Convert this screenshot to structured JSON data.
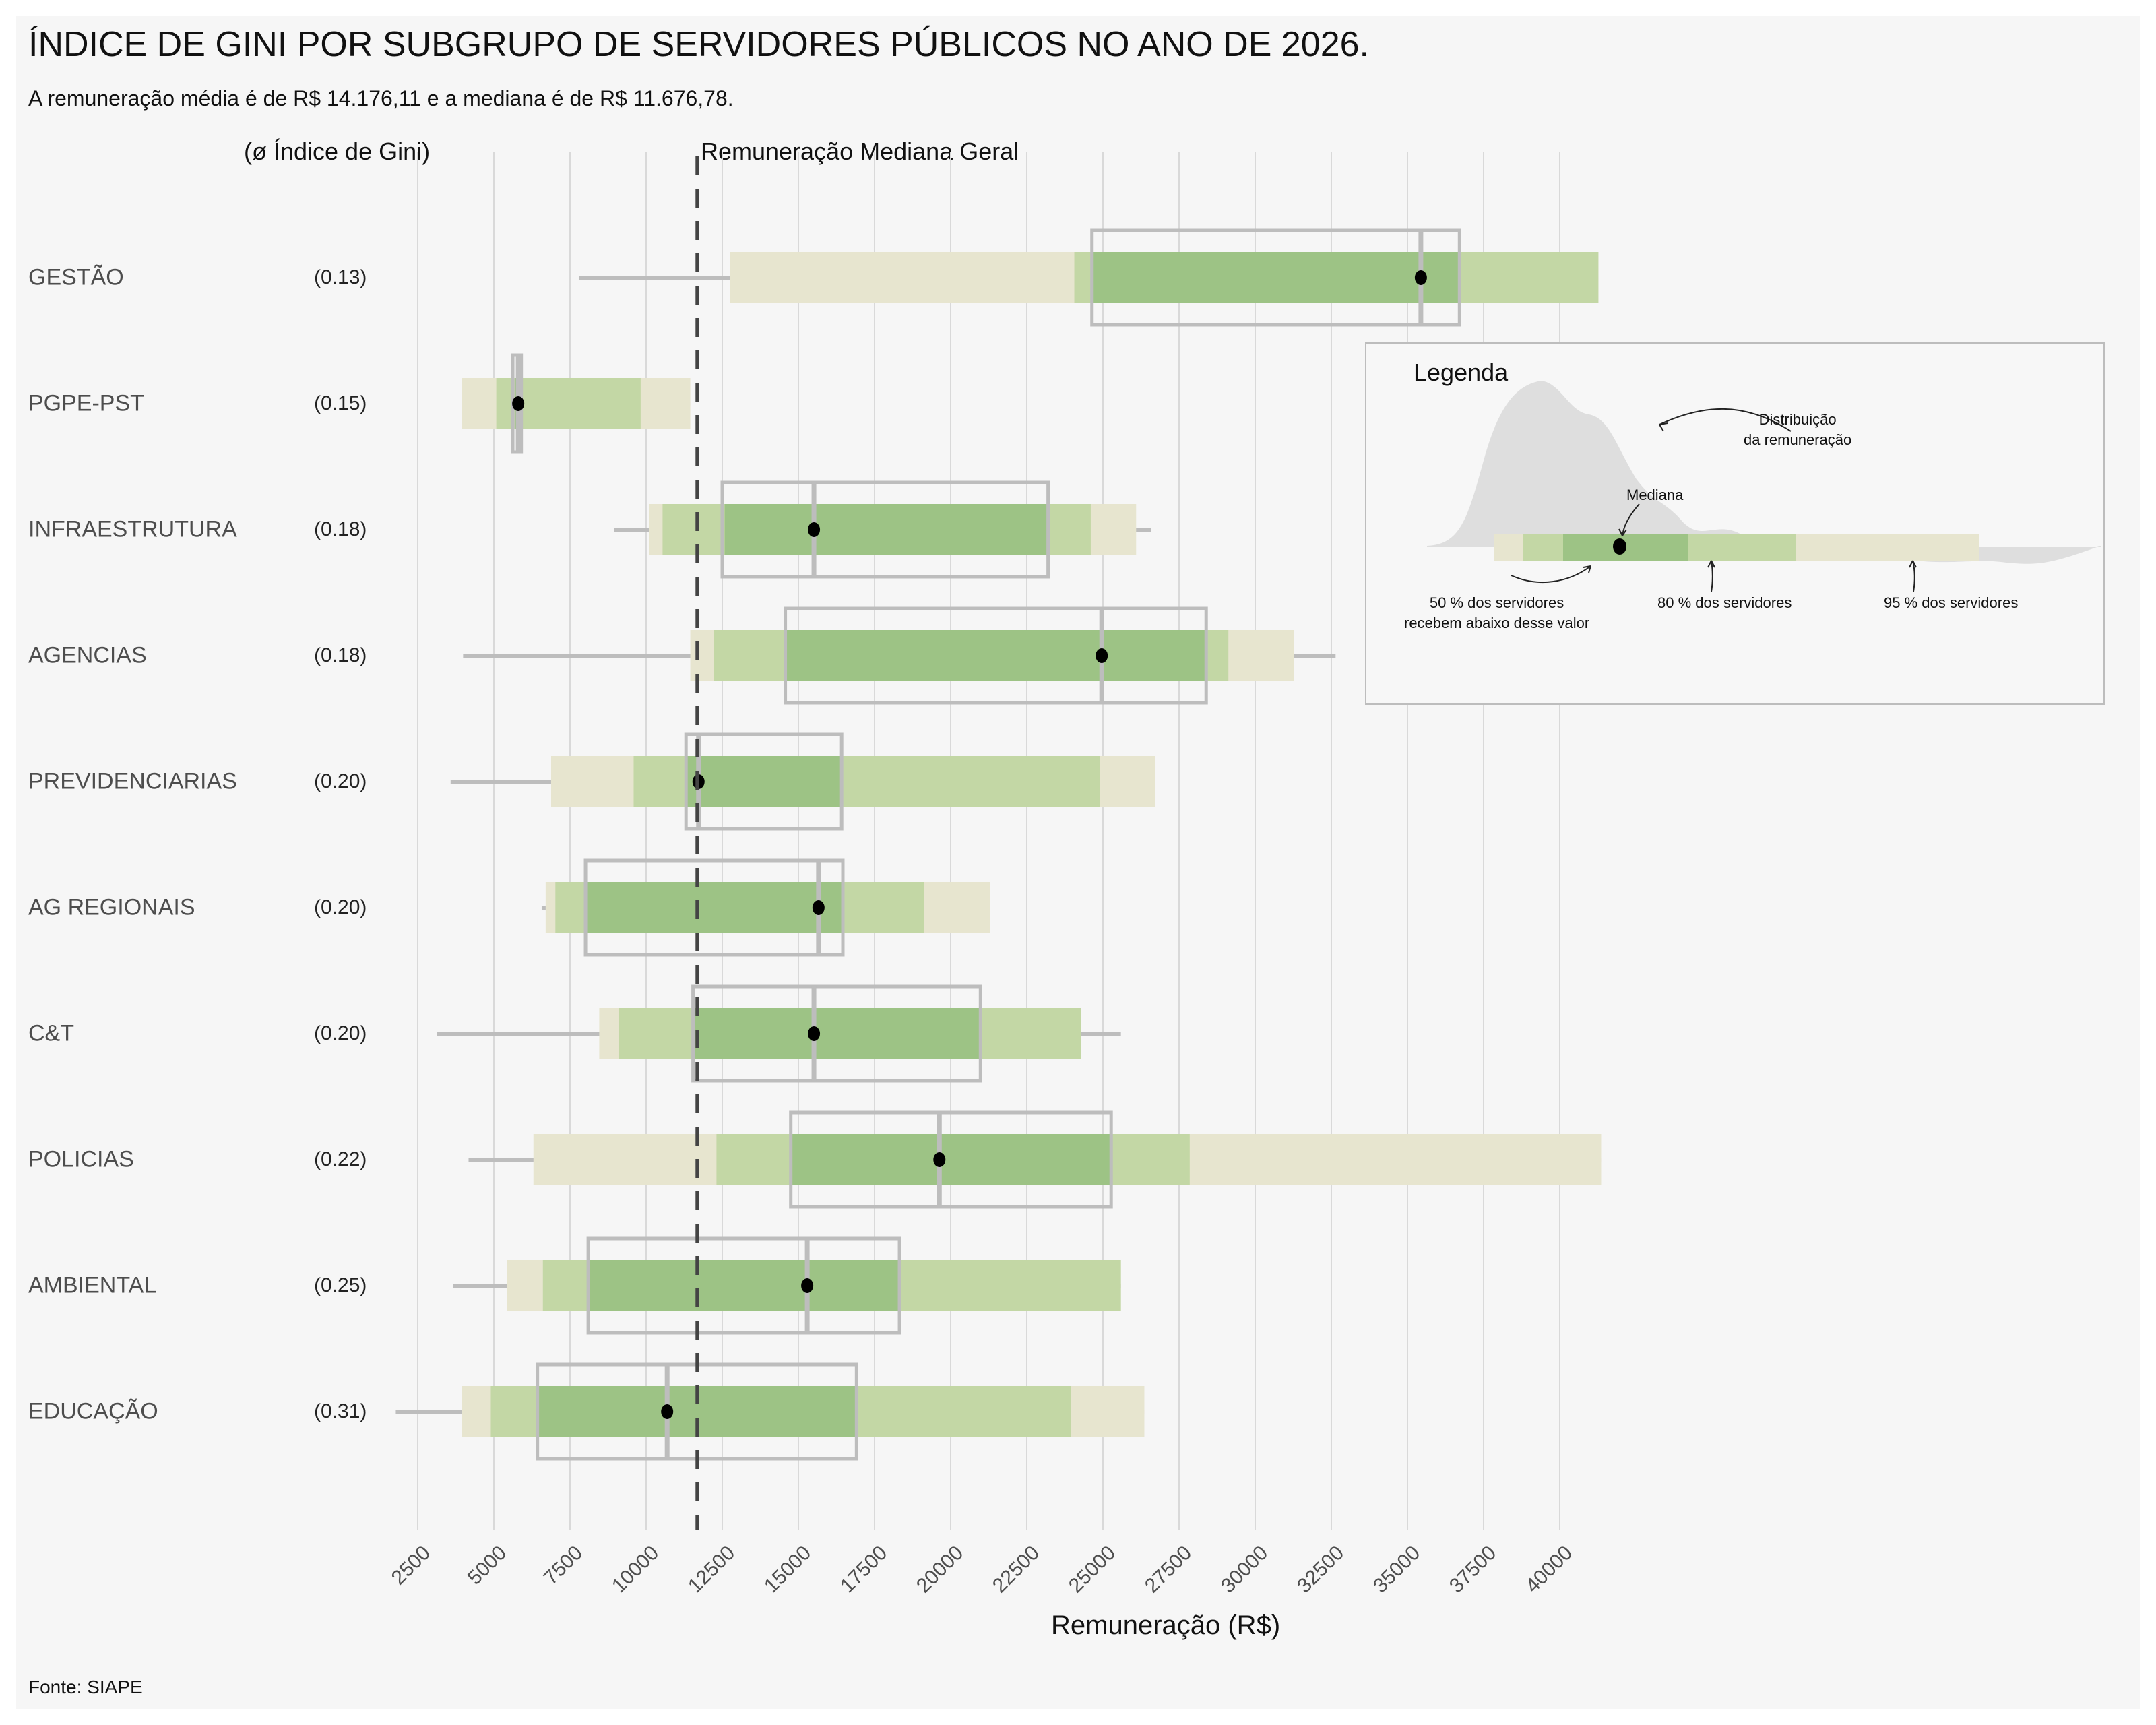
{
  "title": "ÍNDICE DE GINI POR SUBGRUPO DE SERVIDORES PÚBLICOS NO ANO DE 2026.",
  "subtitle": "A remuneração média é de R$ 14.176,11 e a mediana é de R$ 11.676,78.",
  "gini_header": "(ø Índice de Gini)",
  "reference_line_label": "Remuneração Mediana Geral",
  "source": "Fonte: SIAPE",
  "colors": {
    "band95": "#e7e5cf",
    "band80": "#c3d7a5",
    "band50": "#9dc385",
    "box": "#bdbdbd",
    "whisker": "#bdbdbd",
    "median_dot": "#000000",
    "reference_line": "#444444",
    "grid": "#d9d9d9",
    "density": "#dedede"
  },
  "legend": {
    "title": "Legenda",
    "distribution": "Distribuição\nda remuneração",
    "median": "Mediana",
    "p50": "50 % dos servidores\nrecebem abaixo desse valor",
    "p80": "80 % dos servidores",
    "p95": "95 % dos servidores"
  },
  "chart_data": {
    "type": "bar",
    "subtype": "interval-bar with boxplot overlay",
    "title": "ÍNDICE DE GINI POR SUBGRUPO DE SERVIDORES PÚBLICOS NO ANO DE 2026.",
    "xlabel": "Remuneração (R$)",
    "ylabel": "",
    "xlim": [
      1500,
      42000
    ],
    "xticks": [
      2500,
      5000,
      7500,
      10000,
      12500,
      15000,
      17500,
      20000,
      22500,
      25000,
      27500,
      30000,
      32500,
      35000,
      37500,
      40000
    ],
    "grid": "vertical",
    "reference_line": {
      "label": "Remuneração Mediana Geral",
      "value": 11676.78
    },
    "overall_mean": 14176.11,
    "legend_position": "top-right",
    "categories": [
      "GESTÃO",
      "PGPE-PST",
      "INFRAESTRUTURA",
      "AGENCIAS",
      "PREVIDENCIARIAS",
      "AG REGIONAIS",
      "C&T",
      "POLICIAS",
      "AMBIENTAL",
      "EDUCAÇÃO"
    ],
    "gini": [
      "(0.13)",
      "(0.15)",
      "(0.18)",
      "(0.18)",
      "(0.20)",
      "(0.20)",
      "(0.20)",
      "(0.22)",
      "(0.25)",
      "(0.31)"
    ],
    "series": [
      {
        "name": "GESTÃO",
        "median": 35440,
        "p50": [
          24640,
          36710
        ],
        "p80": [
          24060,
          41270
        ],
        "p95": [
          12760,
          41270
        ],
        "whisker": [
          7800,
          41270
        ],
        "box": [
          24640,
          36710,
          35440
        ]
      },
      {
        "name": "PGPE-PST",
        "median": 5800,
        "p50": [
          5700,
          5850
        ],
        "p80": [
          5080,
          9820
        ],
        "p95": [
          3950,
          11450
        ],
        "whisker": [
          3950,
          11450
        ],
        "box": [
          5620,
          5900,
          5800
        ]
      },
      {
        "name": "INFRAESTRUTURA",
        "median": 15510,
        "p50": [
          12580,
          23200
        ],
        "p80": [
          10540,
          24600
        ],
        "p95": [
          10090,
          26090
        ],
        "whisker": [
          8960,
          26590
        ],
        "box": [
          12500,
          23200,
          15510
        ]
      },
      {
        "name": "AGENCIAS",
        "median": 24960,
        "p50": [
          14570,
          28390
        ],
        "p80": [
          12220,
          29120
        ],
        "p95": [
          11450,
          31280
        ],
        "whisker": [
          3990,
          32640
        ],
        "box": [
          14570,
          28390,
          24960
        ]
      },
      {
        "name": "PREVIDENCIARIAS",
        "median": 11720,
        "p50": [
          11310,
          16420
        ],
        "p80": [
          9590,
          24910
        ],
        "p95": [
          6880,
          26720
        ],
        "whisker": [
          3580,
          26720
        ],
        "box": [
          11310,
          16420,
          11720
        ]
      },
      {
        "name": "AG REGIONAIS",
        "median": 15660,
        "p50": [
          8010,
          16460
        ],
        "p80": [
          7020,
          19130
        ],
        "p95": [
          6700,
          21300
        ],
        "whisker": [
          6570,
          21300
        ],
        "box": [
          8010,
          16460,
          15660
        ]
      },
      {
        "name": "C&T",
        "median": 15510,
        "p50": [
          11540,
          20980
        ],
        "p80": [
          9100,
          24280
        ],
        "p95": [
          8460,
          24280
        ],
        "whisker": [
          3130,
          25590
        ],
        "box": [
          11540,
          20980,
          15510
        ]
      },
      {
        "name": "POLICIAS",
        "median": 19630,
        "p50": [
          14750,
          25270
        ],
        "p80": [
          12310,
          27850
        ],
        "p95": [
          6300,
          41360
        ],
        "whisker": [
          4170,
          41360
        ],
        "box": [
          14750,
          25270,
          19630
        ]
      },
      {
        "name": "AMBIENTAL",
        "median": 15290,
        "p50": [
          8100,
          18320
        ],
        "p80": [
          6610,
          25590
        ],
        "p95": [
          5440,
          25590
        ],
        "whisker": [
          3670,
          25590
        ],
        "box": [
          8100,
          18320,
          15290
        ]
      },
      {
        "name": "EDUCAÇÃO",
        "median": 10690,
        "p50": [
          6430,
          16910
        ],
        "p80": [
          4900,
          23960
        ],
        "p95": [
          3950,
          26360
        ],
        "whisker": [
          1780,
          26360
        ],
        "box": [
          6430,
          16910,
          10690
        ]
      }
    ]
  }
}
